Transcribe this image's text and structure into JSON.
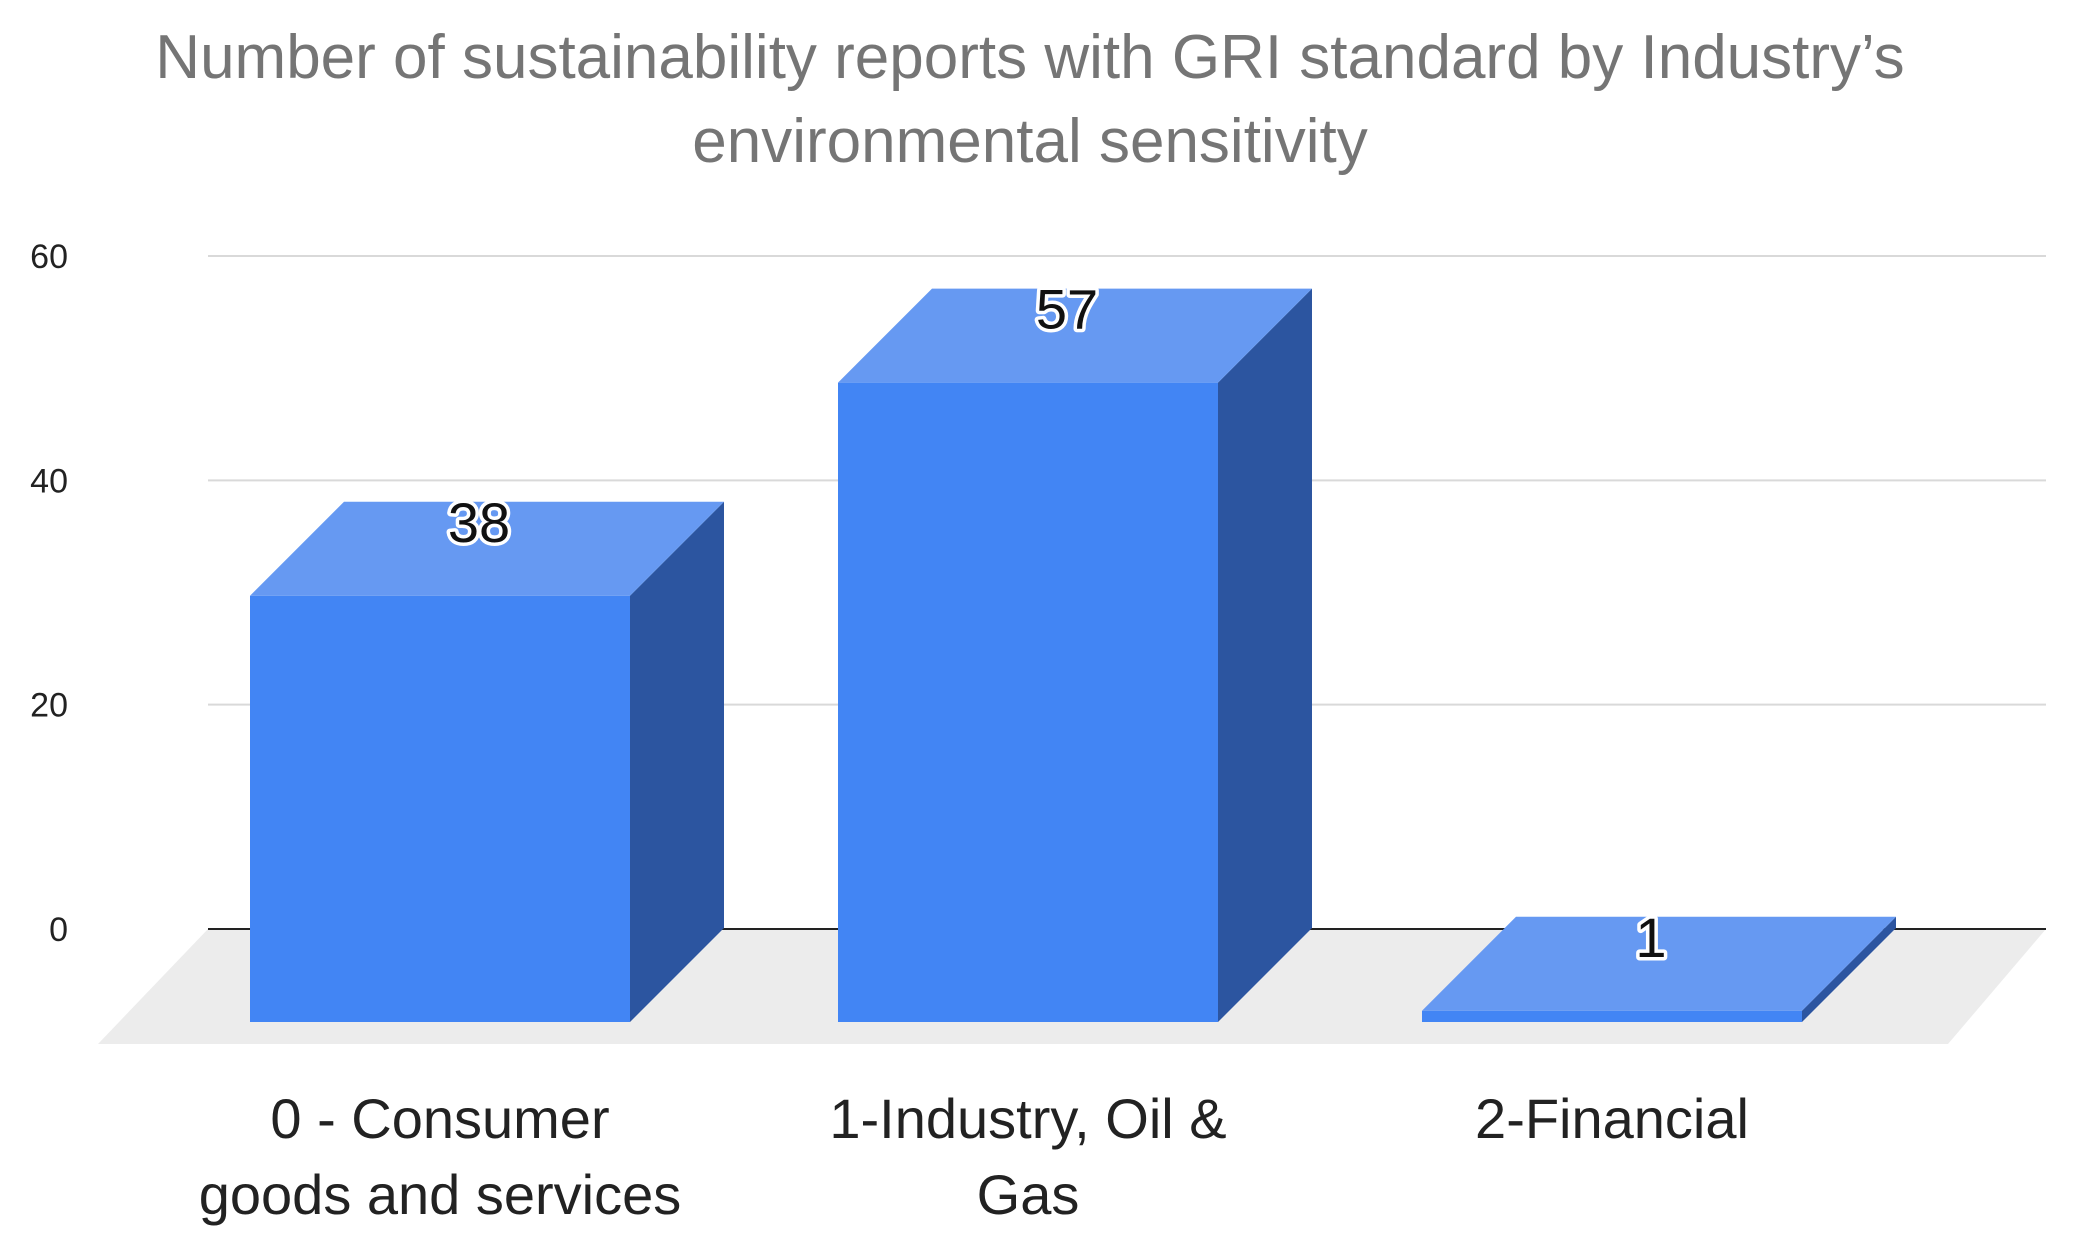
{
  "chart_data": {
    "type": "bar",
    "style": "3d",
    "title": "Number of sustainability reports with GRI standard by Industry’s environmental sensitivity",
    "title_lines": [
      "Number of sustainability reports with GRI standard by Industry’s",
      "environmental sensitivity"
    ],
    "categories": [
      "0 - Consumer goods and services",
      "1-Industry, Oil & Gas",
      "2-Financial"
    ],
    "category_label_lines": [
      [
        "0 - Consumer",
        "goods and services"
      ],
      [
        "1-Industry, Oil &",
        "Gas"
      ],
      [
        "2-Financial"
      ]
    ],
    "values": [
      38,
      57,
      1
    ],
    "data_labels": [
      "38",
      "57",
      "1"
    ],
    "ylim": [
      0,
      60
    ],
    "yticks": [
      0,
      20,
      40,
      60
    ],
    "ytick_labels": [
      "0",
      "20",
      "40",
      "60"
    ],
    "xlabel": "",
    "ylabel": "",
    "grid": true,
    "legend": "none",
    "colors": {
      "bar_front": "#4285f4",
      "bar_top": "#6699f2",
      "bar_side": "#2c55a0",
      "floor": "#ececec",
      "grid": "#d9d9d9",
      "baseline": "#222222"
    }
  }
}
